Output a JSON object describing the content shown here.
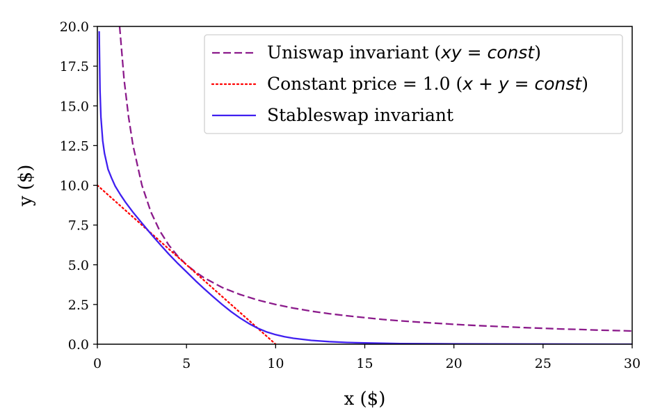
{
  "chart_data": {
    "type": "line",
    "xlabel": "x ($)",
    "ylabel": "y ($)",
    "xlim": [
      0,
      30
    ],
    "ylim": [
      0,
      20
    ],
    "xticks": [
      "0",
      "5",
      "10",
      "15",
      "20",
      "25",
      "30"
    ],
    "yticks": [
      "0.0",
      "2.5",
      "5.0",
      "7.5",
      "10.0",
      "12.5",
      "15.0",
      "17.5",
      "20.0"
    ],
    "grid": false,
    "legend_position": "top-right",
    "series": [
      {
        "name": "Uniswap invariant (xy = const)",
        "legend_parts": [
          {
            "t": "Uniswap invariant (",
            "s": "text"
          },
          {
            "t": "xy",
            "s": "math"
          },
          {
            "t": " = ",
            "s": "mathop"
          },
          {
            "t": "const",
            "s": "math"
          },
          {
            "t": ")",
            "s": "text"
          }
        ],
        "color": "#8b1a8b",
        "style": "dashed",
        "x": [
          1.25,
          1.5,
          1.75,
          2,
          2.5,
          3,
          3.5,
          4,
          4.5,
          5,
          5.5,
          6,
          7,
          8,
          9,
          10,
          11,
          12,
          13,
          14,
          15,
          16,
          17,
          18,
          19,
          20,
          21,
          22,
          23,
          24,
          25,
          26,
          27,
          28,
          29,
          30
        ],
        "y": [
          20.0,
          16.67,
          14.29,
          12.5,
          10.0,
          8.33,
          7.14,
          6.25,
          5.56,
          5.0,
          4.55,
          4.17,
          3.57,
          3.13,
          2.78,
          2.5,
          2.27,
          2.08,
          1.92,
          1.79,
          1.67,
          1.56,
          1.47,
          1.39,
          1.32,
          1.25,
          1.19,
          1.14,
          1.09,
          1.04,
          1.0,
          0.96,
          0.93,
          0.89,
          0.86,
          0.83
        ]
      },
      {
        "name": "Constant price = 1.0 (x + y = const)",
        "legend_parts": [
          {
            "t": "Constant price = 1.0 (",
            "s": "text"
          },
          {
            "t": "x",
            "s": "math"
          },
          {
            "t": " + ",
            "s": "mathop"
          },
          {
            "t": "y",
            "s": "math"
          },
          {
            "t": " = ",
            "s": "mathop"
          },
          {
            "t": "const",
            "s": "math"
          },
          {
            "t": ")",
            "s": "text"
          }
        ],
        "color": "#ff0000",
        "style": "dotted",
        "x": [
          0,
          10
        ],
        "y": [
          10,
          0
        ]
      },
      {
        "name": "Stableswap invariant",
        "legend_parts": [
          {
            "t": "Stableswap invariant",
            "s": "text"
          }
        ],
        "color": "#3f1ff0",
        "style": "solid",
        "x": [
          0.1,
          0.15,
          0.2,
          0.3,
          0.4,
          0.6,
          0.8,
          1.0,
          1.3,
          1.6,
          2.0,
          2.5,
          3.0,
          3.5,
          4.0,
          4.5,
          5.0,
          5.5,
          6.0,
          6.5,
          7.0,
          7.5,
          8.0,
          8.5,
          9.0,
          9.5,
          10,
          10.5,
          11,
          12,
          13,
          14,
          15,
          17,
          20,
          25,
          30
        ],
        "y": [
          19.7,
          16.0,
          14.3,
          12.8,
          12.0,
          11.0,
          10.45,
          9.95,
          9.4,
          8.9,
          8.3,
          7.62,
          6.95,
          6.3,
          5.68,
          5.1,
          4.55,
          4.0,
          3.48,
          2.98,
          2.5,
          2.05,
          1.65,
          1.3,
          1.0,
          0.77,
          0.6,
          0.47,
          0.37,
          0.24,
          0.16,
          0.11,
          0.08,
          0.04,
          0.02,
          0.01,
          0.0
        ]
      }
    ]
  }
}
